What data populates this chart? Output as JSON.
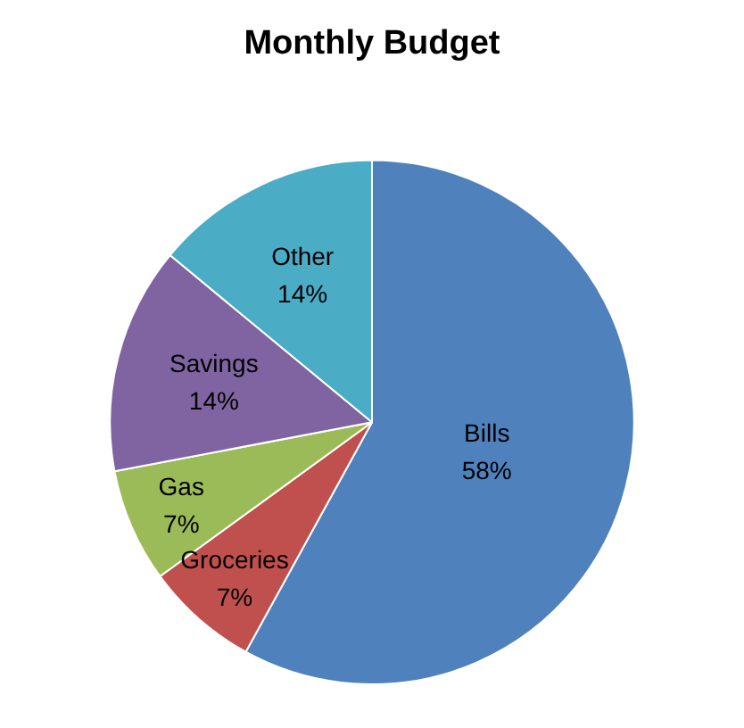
{
  "chart_data": {
    "type": "pie",
    "title": "Monthly Budget",
    "categories": [
      "Bills",
      "Groceries",
      "Gas",
      "Savings",
      "Other"
    ],
    "values": [
      58,
      7,
      7,
      14,
      14
    ],
    "value_labels": [
      "58%",
      "7%",
      "7%",
      "14%",
      "14%"
    ],
    "colors": [
      "#4f81bd",
      "#c0504d",
      "#9bbb59",
      "#8064a2",
      "#4bacc6"
    ],
    "legend": false
  }
}
